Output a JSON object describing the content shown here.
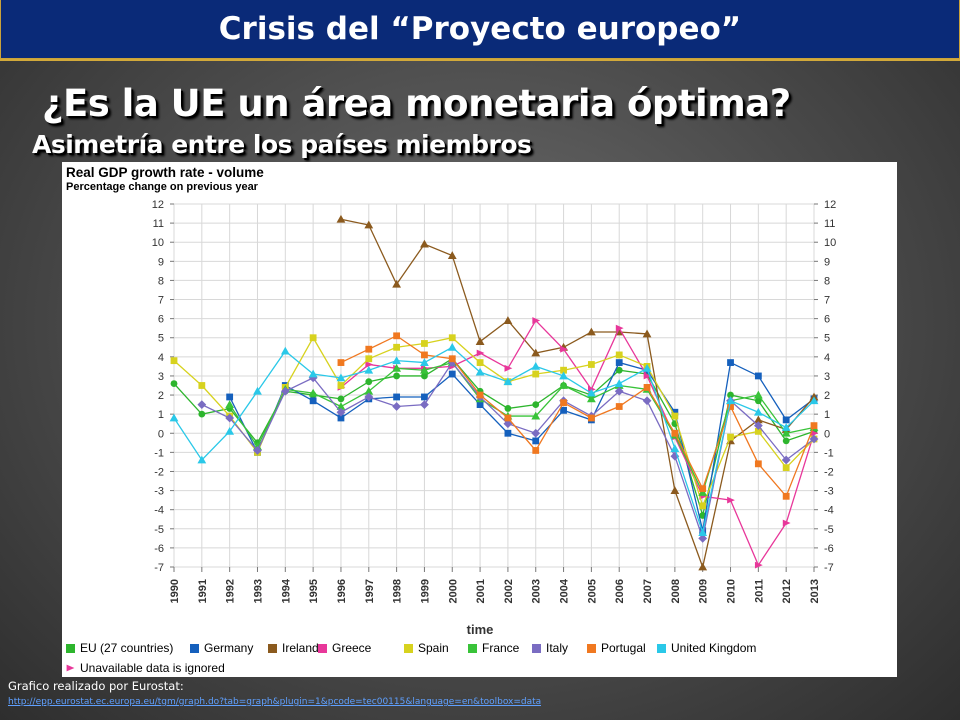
{
  "header": {
    "title": "Crisis del “Proyecto europeo”"
  },
  "slide": {
    "heading": "¿Es la UE un área monetaria óptima?",
    "subheading": "Asimetría entre los países miembros"
  },
  "footer": {
    "source_label": "Grafico realizado por Eurostat:",
    "source_link": "http://epp.eurostat.ec.europa.eu/tgm/graph.do?tab=graph&plugin=1&pcode=tec00115&language=en&toolbox=data"
  },
  "chart_data": {
    "type": "line",
    "title": "Real GDP growth rate - volume",
    "subtitle": "Percentage change on previous year",
    "xlabel": "time",
    "ylabel": "",
    "ylim": [
      -7,
      12
    ],
    "yticks": [
      -7,
      -6,
      -5,
      -4,
      -3,
      -2,
      -1,
      0,
      1,
      2,
      3,
      4,
      5,
      6,
      7,
      8,
      9,
      10,
      11,
      12
    ],
    "x": [
      1990,
      1991,
      1992,
      1993,
      1994,
      1995,
      1996,
      1997,
      1998,
      1999,
      2000,
      2001,
      2002,
      2003,
      2004,
      2005,
      2006,
      2007,
      2008,
      2009,
      2010,
      2011,
      2012,
      2013
    ],
    "x_labels": [
      "1990",
      "1991",
      "1992",
      "1993",
      "1994",
      "1995",
      "1996",
      "1997",
      "1998",
      "1999",
      "2000",
      "2001",
      "2002",
      "2003",
      "2004",
      "2005",
      "2006",
      "2007",
      "2008",
      "2009",
      "2010",
      "2011",
      "2012",
      "2013"
    ],
    "grid": true,
    "legend_placement": "bottom",
    "legend_note": "Unavailable data is ignored",
    "series": [
      {
        "name": "EU (27 countries)",
        "color": "#2db52d",
        "marker": "circle",
        "values": [
          2.6,
          1.0,
          1.3,
          -0.5,
          2.2,
          2.0,
          1.8,
          2.7,
          3.0,
          3.0,
          3.9,
          2.2,
          1.3,
          1.5,
          2.5,
          2.0,
          3.3,
          3.1,
          0.5,
          -4.3,
          2.0,
          1.7,
          -0.4,
          0.1
        ]
      },
      {
        "name": "Germany",
        "color": "#1560bd",
        "marker": "square",
        "values": [
          null,
          null,
          1.9,
          -1.0,
          2.5,
          1.7,
          0.8,
          1.8,
          1.9,
          1.9,
          3.1,
          1.5,
          0.0,
          -0.4,
          1.2,
          0.7,
          3.7,
          3.3,
          1.1,
          -5.1,
          3.7,
          3.0,
          0.7,
          1.8
        ]
      },
      {
        "name": "Ireland",
        "color": "#8b5a1e",
        "marker": "triangle",
        "values": [
          null,
          null,
          null,
          null,
          null,
          null,
          11.2,
          10.9,
          7.8,
          9.9,
          9.3,
          4.8,
          5.9,
          4.2,
          4.5,
          5.3,
          5.3,
          5.2,
          -3.0,
          -7.0,
          -0.4,
          0.7,
          0.2,
          1.9
        ]
      },
      {
        "name": "Greece",
        "color": "#e8379a",
        "marker": "triangle-right",
        "values": [
          null,
          null,
          null,
          null,
          null,
          null,
          2.4,
          3.6,
          3.4,
          3.4,
          3.5,
          4.2,
          3.4,
          5.9,
          4.4,
          2.3,
          5.5,
          3.0,
          -0.2,
          -3.3,
          -3.5,
          -6.9,
          -4.7,
          0.0
        ]
      },
      {
        "name": "Spain",
        "color": "#d7d21e",
        "marker": "square",
        "values": [
          3.8,
          2.5,
          0.9,
          -1.0,
          2.4,
          5.0,
          2.5,
          3.9,
          4.5,
          4.7,
          5.0,
          3.7,
          2.7,
          3.1,
          3.3,
          3.6,
          4.1,
          3.5,
          0.9,
          -3.8,
          -0.2,
          0.1,
          -1.8,
          -0.3
        ]
      },
      {
        "name": "France",
        "color": "#39c339",
        "marker": "triangle",
        "values": [
          null,
          null,
          1.5,
          -0.7,
          2.3,
          2.1,
          1.4,
          2.2,
          3.4,
          3.3,
          3.7,
          1.8,
          0.9,
          0.9,
          2.5,
          1.8,
          2.5,
          2.3,
          -0.1,
          -3.1,
          1.7,
          2.0,
          0.0,
          0.3
        ]
      },
      {
        "name": "Italy",
        "color": "#7a6cc2",
        "marker": "diamond",
        "values": [
          null,
          1.5,
          0.8,
          -0.9,
          2.2,
          2.9,
          1.1,
          1.9,
          1.4,
          1.5,
          3.7,
          1.9,
          0.5,
          0.0,
          1.7,
          0.9,
          2.2,
          1.7,
          -1.2,
          -5.5,
          1.7,
          0.4,
          -1.4,
          -0.3
        ]
      },
      {
        "name": "Portugal",
        "color": "#f07820",
        "marker": "square",
        "values": [
          null,
          null,
          null,
          null,
          null,
          null,
          3.7,
          4.4,
          5.1,
          4.1,
          3.9,
          2.0,
          0.8,
          -0.9,
          1.6,
          0.8,
          1.4,
          2.4,
          0.0,
          -2.9,
          1.4,
          -1.6,
          -3.3,
          0.4
        ]
      },
      {
        "name": "United Kingdom",
        "color": "#2ac8e8",
        "marker": "triangle",
        "values": [
          0.8,
          -1.4,
          0.1,
          2.2,
          4.3,
          3.1,
          2.9,
          3.3,
          3.8,
          3.7,
          4.5,
          3.2,
          2.7,
          3.5,
          3.0,
          2.1,
          2.6,
          3.4,
          -0.8,
          -5.2,
          1.7,
          1.1,
          0.3,
          1.7
        ]
      }
    ]
  }
}
